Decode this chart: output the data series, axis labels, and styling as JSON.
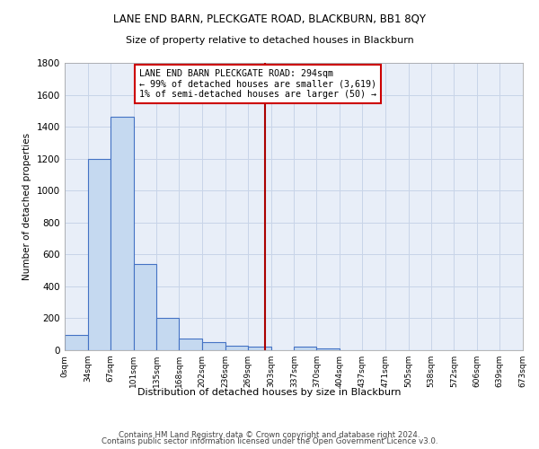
{
  "title": "LANE END BARN, PLECKGATE ROAD, BLACKBURN, BB1 8QY",
  "subtitle": "Size of property relative to detached houses in Blackburn",
  "xlabel": "Distribution of detached houses by size in Blackburn",
  "ylabel": "Number of detached properties",
  "bar_edges": [
    0,
    34,
    67,
    101,
    135,
    168,
    202,
    236,
    269,
    303,
    337,
    370,
    404,
    437,
    471,
    505,
    538,
    572,
    606,
    639,
    673
  ],
  "bar_heights": [
    95,
    1200,
    1460,
    540,
    205,
    75,
    50,
    30,
    20,
    0,
    20,
    10,
    0,
    0,
    0,
    0,
    0,
    0,
    0,
    0
  ],
  "bar_color": "#c5d9f0",
  "bar_edge_color": "#4472c4",
  "vline_x": 294,
  "vline_color": "#aa0000",
  "annotation_text": "LANE END BARN PLECKGATE ROAD: 294sqm\n← 99% of detached houses are smaller (3,619)\n1% of semi-detached houses are larger (50) →",
  "annotation_box_color": "#ffffff",
  "annotation_box_edge": "#cc0000",
  "ylim": [
    0,
    1800
  ],
  "yticks": [
    0,
    200,
    400,
    600,
    800,
    1000,
    1200,
    1400,
    1600,
    1800
  ],
  "xtick_labels": [
    "0sqm",
    "34sqm",
    "67sqm",
    "101sqm",
    "135sqm",
    "168sqm",
    "202sqm",
    "236sqm",
    "269sqm",
    "303sqm",
    "337sqm",
    "370sqm",
    "404sqm",
    "437sqm",
    "471sqm",
    "505sqm",
    "538sqm",
    "572sqm",
    "606sqm",
    "639sqm",
    "673sqm"
  ],
  "grid_color": "#c8d4e8",
  "bg_color": "#e8eef8",
  "footer1": "Contains HM Land Registry data © Crown copyright and database right 2024.",
  "footer2": "Contains public sector information licensed under the Open Government Licence v3.0."
}
